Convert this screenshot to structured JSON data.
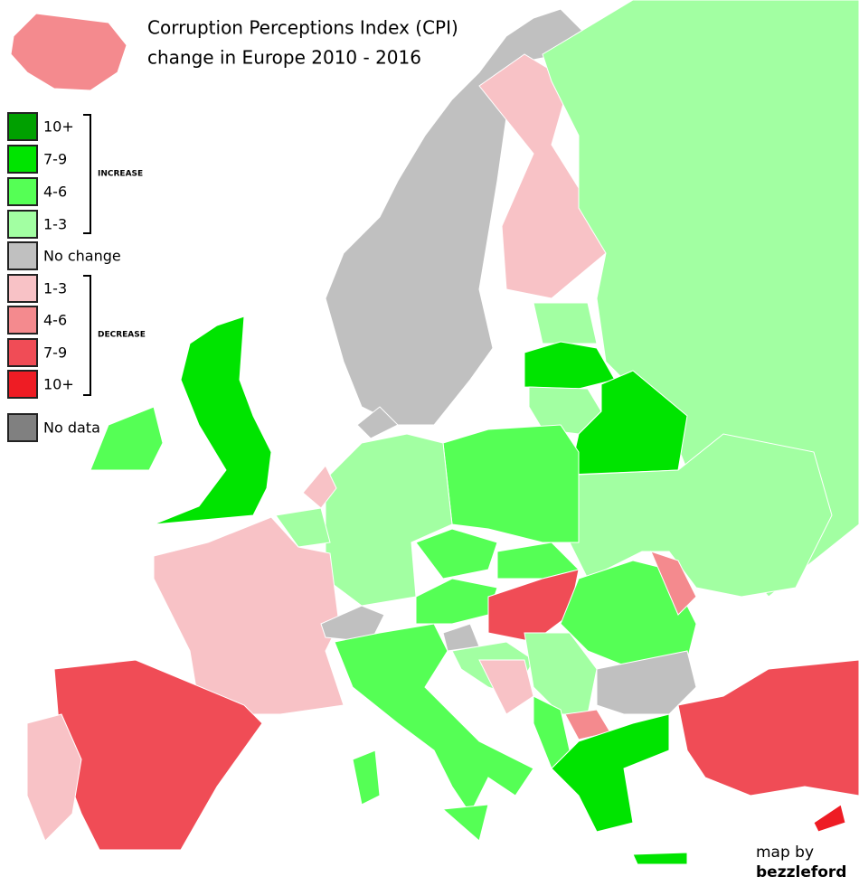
{
  "title": [
    "Corruption Perceptions Index (CPI)",
    "change in Europe 2010 - 2016"
  ],
  "legend": {
    "items": [
      {
        "label": "10+",
        "color": "#00a000"
      },
      {
        "label": "7-9",
        "color": "#00e400"
      },
      {
        "label": "4-6",
        "color": "#55ff55"
      },
      {
        "label": "1-3",
        "color": "#a2ffa2"
      },
      {
        "label": "No change",
        "color": "#c0c0c0"
      },
      {
        "label": "1-3",
        "color": "#f8c2c6"
      },
      {
        "label": "4-6",
        "color": "#f48a8e"
      },
      {
        "label": "7-9",
        "color": "#f04c56"
      },
      {
        "label": "10+",
        "color": "#ee1c24"
      },
      {
        "label": "No data",
        "color": "#808080"
      }
    ],
    "increase": "INCREASE",
    "decrease": "DECREASE"
  },
  "credit": [
    "map by",
    "bezzleford"
  ]
}
